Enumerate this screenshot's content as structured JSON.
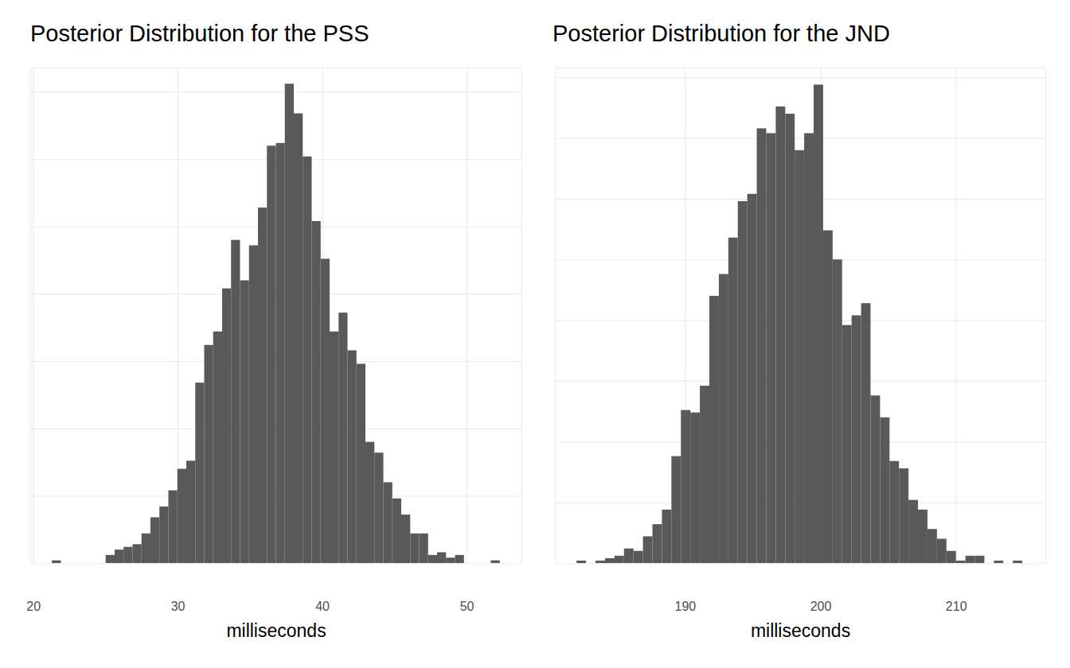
{
  "chart_data": [
    {
      "type": "histogram",
      "title": "Posterior Distribution for the PSS",
      "xlabel": "milliseconds",
      "bins": [
        21.3,
        21.92,
        22.54,
        23.16,
        23.78,
        24.4,
        25.02,
        25.64,
        26.26,
        26.88,
        27.5,
        28.12,
        28.74,
        29.36,
        29.98,
        30.6,
        31.22,
        31.84,
        32.46,
        33.08,
        33.7,
        34.32,
        34.94,
        35.56,
        36.18,
        36.8,
        37.42,
        38.04,
        38.66,
        39.28,
        39.9,
        40.52,
        41.14,
        41.76,
        42.38,
        43.0,
        43.62,
        44.24,
        44.86,
        45.48,
        46.1,
        46.72,
        47.34,
        47.96,
        48.58,
        49.2,
        49.82,
        50.44,
        51.06,
        51.68,
        52.3
      ],
      "counts": [
        1,
        0,
        0,
        0,
        0,
        0,
        3,
        5,
        6,
        7,
        11,
        17,
        21,
        27,
        35,
        38,
        67,
        81,
        86,
        102,
        120,
        105,
        118,
        132,
        155,
        156,
        178,
        167,
        151,
        127,
        113,
        86,
        93,
        79,
        74,
        45,
        41,
        30,
        24,
        18,
        11,
        11,
        3,
        4,
        2,
        3,
        0,
        0,
        0,
        1
      ],
      "color": "#595959",
      "xlim": [
        19.8,
        53.8
      ],
      "xticks": [
        20,
        30,
        40,
        50
      ],
      "ylim": [
        0,
        184
      ],
      "yticks": [
        0,
        25,
        50,
        75,
        100,
        125,
        150,
        175
      ],
      "grid": true,
      "tick_labels": "x"
    },
    {
      "type": "histogram",
      "title": "Posterior Distribution for the JND",
      "xlabel": "milliseconds",
      "bins": [
        182.0,
        182.7,
        183.4,
        184.1,
        184.8,
        185.5,
        186.2,
        186.9,
        187.6,
        188.3,
        189.0,
        189.7,
        190.4,
        191.1,
        191.8,
        192.5,
        193.2,
        193.9,
        194.6,
        195.3,
        196.0,
        196.7,
        197.4,
        198.1,
        198.8,
        199.5,
        200.2,
        200.9,
        201.6,
        202.3,
        203.0,
        203.7,
        204.4,
        205.1,
        205.8,
        206.5,
        207.2,
        207.9,
        208.6,
        209.3,
        210.0,
        210.7,
        211.4,
        212.1,
        212.8,
        213.5,
        214.2,
        214.9
      ],
      "counts": [
        1,
        0,
        1,
        2,
        3,
        6,
        5,
        11,
        16,
        22,
        44,
        63,
        62,
        73,
        110,
        119,
        134,
        149,
        152,
        179,
        177,
        188,
        185,
        170,
        177,
        197,
        137,
        125,
        98,
        102,
        107,
        69,
        60,
        42,
        39,
        26,
        22,
        14,
        10,
        5,
        1,
        3,
        3,
        0,
        1,
        0,
        1
      ],
      "color": "#595959",
      "xlim": [
        180.4,
        216.6
      ],
      "xticks": [
        190,
        200,
        210
      ],
      "ylim": [
        0,
        204
      ],
      "yticks": [
        0,
        25,
        50,
        75,
        100,
        125,
        150,
        175,
        200
      ],
      "grid": true,
      "tick_labels": "x"
    }
  ]
}
